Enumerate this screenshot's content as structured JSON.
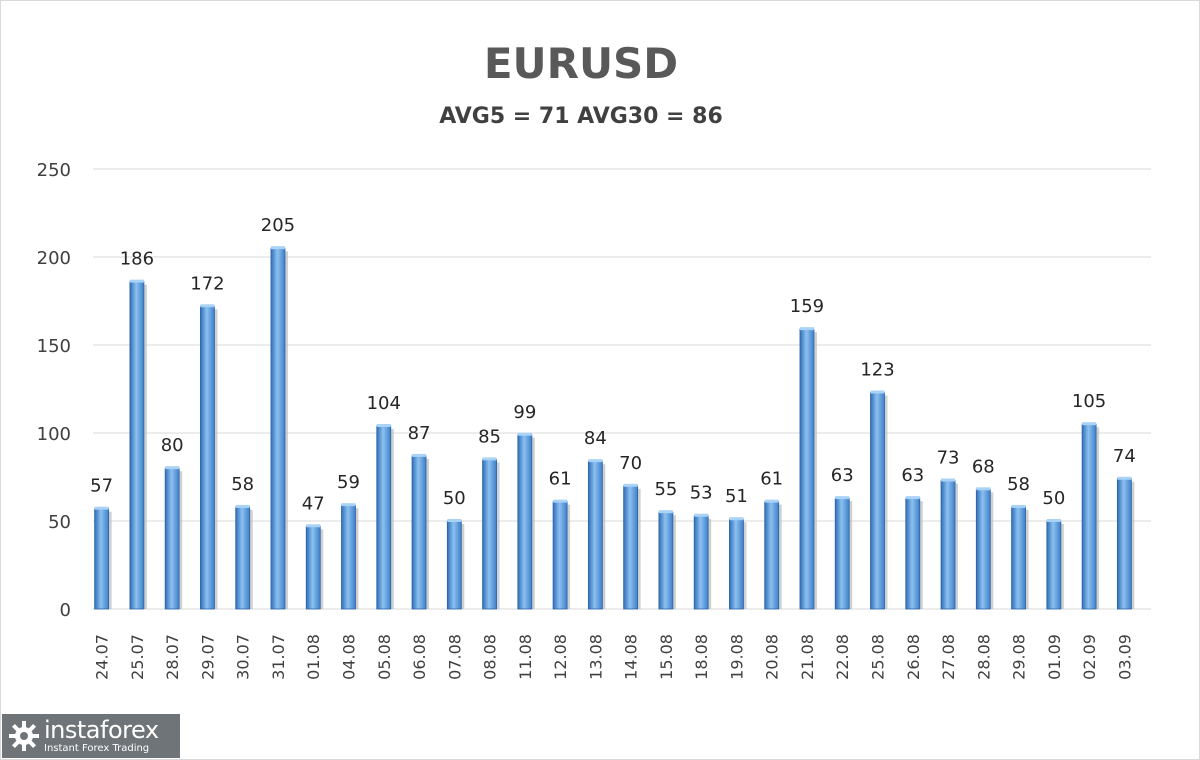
{
  "chart_data": {
    "type": "bar",
    "title": "EURUSD",
    "subtitle": "AVG5 = 71 AVG30 = 86",
    "xlabel": "",
    "ylabel": "",
    "ylim": [
      0,
      250
    ],
    "yticks": [
      0,
      50,
      100,
      150,
      200,
      250
    ],
    "grid": true,
    "legend": "none",
    "categories": [
      "24.07",
      "25.07",
      "28.07",
      "29.07",
      "30.07",
      "31.07",
      "01.08",
      "04.08",
      "05.08",
      "06.08",
      "07.08",
      "08.08",
      "11.08",
      "12.08",
      "13.08",
      "14.08",
      "15.08",
      "18.08",
      "19.08",
      "20.08",
      "21.08",
      "22.08",
      "25.08",
      "26.08",
      "27.08",
      "28.08",
      "29.08",
      "01.09",
      "02.09",
      "03.09"
    ],
    "values": [
      57,
      186,
      80,
      172,
      58,
      205,
      47,
      59,
      104,
      87,
      50,
      85,
      99,
      61,
      84,
      70,
      55,
      53,
      51,
      61,
      159,
      63,
      123,
      63,
      73,
      68,
      58,
      50,
      105,
      74
    ],
    "bar_color": "#4a90d9",
    "data_labels": true
  },
  "logo": {
    "name": "instaforex",
    "tagline": "Instant Forex Trading"
  }
}
